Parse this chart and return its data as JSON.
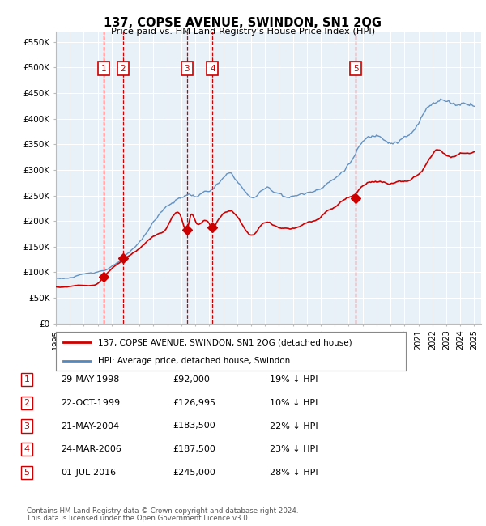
{
  "title": "137, COPSE AVENUE, SWINDON, SN1 2QG",
  "subtitle": "Price paid vs. HM Land Registry's House Price Index (HPI)",
  "ylabel_ticks": [
    "£0",
    "£50K",
    "£100K",
    "£150K",
    "£200K",
    "£250K",
    "£300K",
    "£350K",
    "£400K",
    "£450K",
    "£500K",
    "£550K"
  ],
  "ytick_values": [
    0,
    50000,
    100000,
    150000,
    200000,
    250000,
    300000,
    350000,
    400000,
    450000,
    500000,
    550000
  ],
  "xlim": [
    1995.0,
    2025.5
  ],
  "ylim": [
    0,
    570000
  ],
  "transactions": [
    {
      "num": 1,
      "date": "29-MAY-1998",
      "price": 92000,
      "year": 1998.42,
      "pct": "19% ↓ HPI"
    },
    {
      "num": 2,
      "date": "22-OCT-1999",
      "price": 126995,
      "year": 1999.81,
      "pct": "10% ↓ HPI"
    },
    {
      "num": 3,
      "date": "21-MAY-2004",
      "price": 183500,
      "year": 2004.39,
      "pct": "22% ↓ HPI"
    },
    {
      "num": 4,
      "date": "24-MAR-2006",
      "price": 187500,
      "year": 2006.23,
      "pct": "23% ↓ HPI"
    },
    {
      "num": 5,
      "date": "01-JUL-2016",
      "price": 245000,
      "year": 2016.5,
      "pct": "28% ↓ HPI"
    }
  ],
  "legend_line1": "137, COPSE AVENUE, SWINDON, SN1 2QG (detached house)",
  "legend_line2": "HPI: Average price, detached house, Swindon",
  "footer1": "Contains HM Land Registry data © Crown copyright and database right 2024.",
  "footer2": "This data is licensed under the Open Government Licence v3.0.",
  "red_color": "#cc0000",
  "blue_color": "#5588bb",
  "box_color": "#cc0000",
  "grid_color": "#cccccc",
  "chart_bg": "#e8f0f8",
  "bg_color": "#ffffff"
}
